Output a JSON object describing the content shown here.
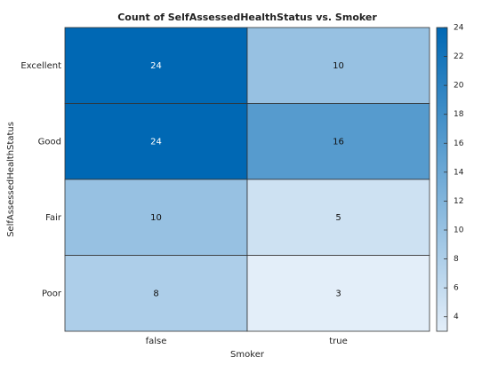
{
  "chart_data": {
    "type": "heatmap",
    "title": "Count of SelfAssessedHealthStatus vs. Smoker",
    "x_label": "Smoker",
    "y_label": "SelfAssessedHealthStatus",
    "x_categories": [
      "false",
      "true"
    ],
    "y_categories": [
      "Excellent",
      "Good",
      "Fair",
      "Poor"
    ],
    "values": [
      [
        24,
        10
      ],
      [
        24,
        16
      ],
      [
        10,
        5
      ],
      [
        8,
        3
      ]
    ],
    "clim": [
      3,
      24
    ],
    "cticks": [
      4,
      6,
      8,
      10,
      12,
      14,
      16,
      18,
      20,
      22,
      24
    ],
    "colormap": [
      "#e3eef9",
      "#0068b4"
    ]
  }
}
